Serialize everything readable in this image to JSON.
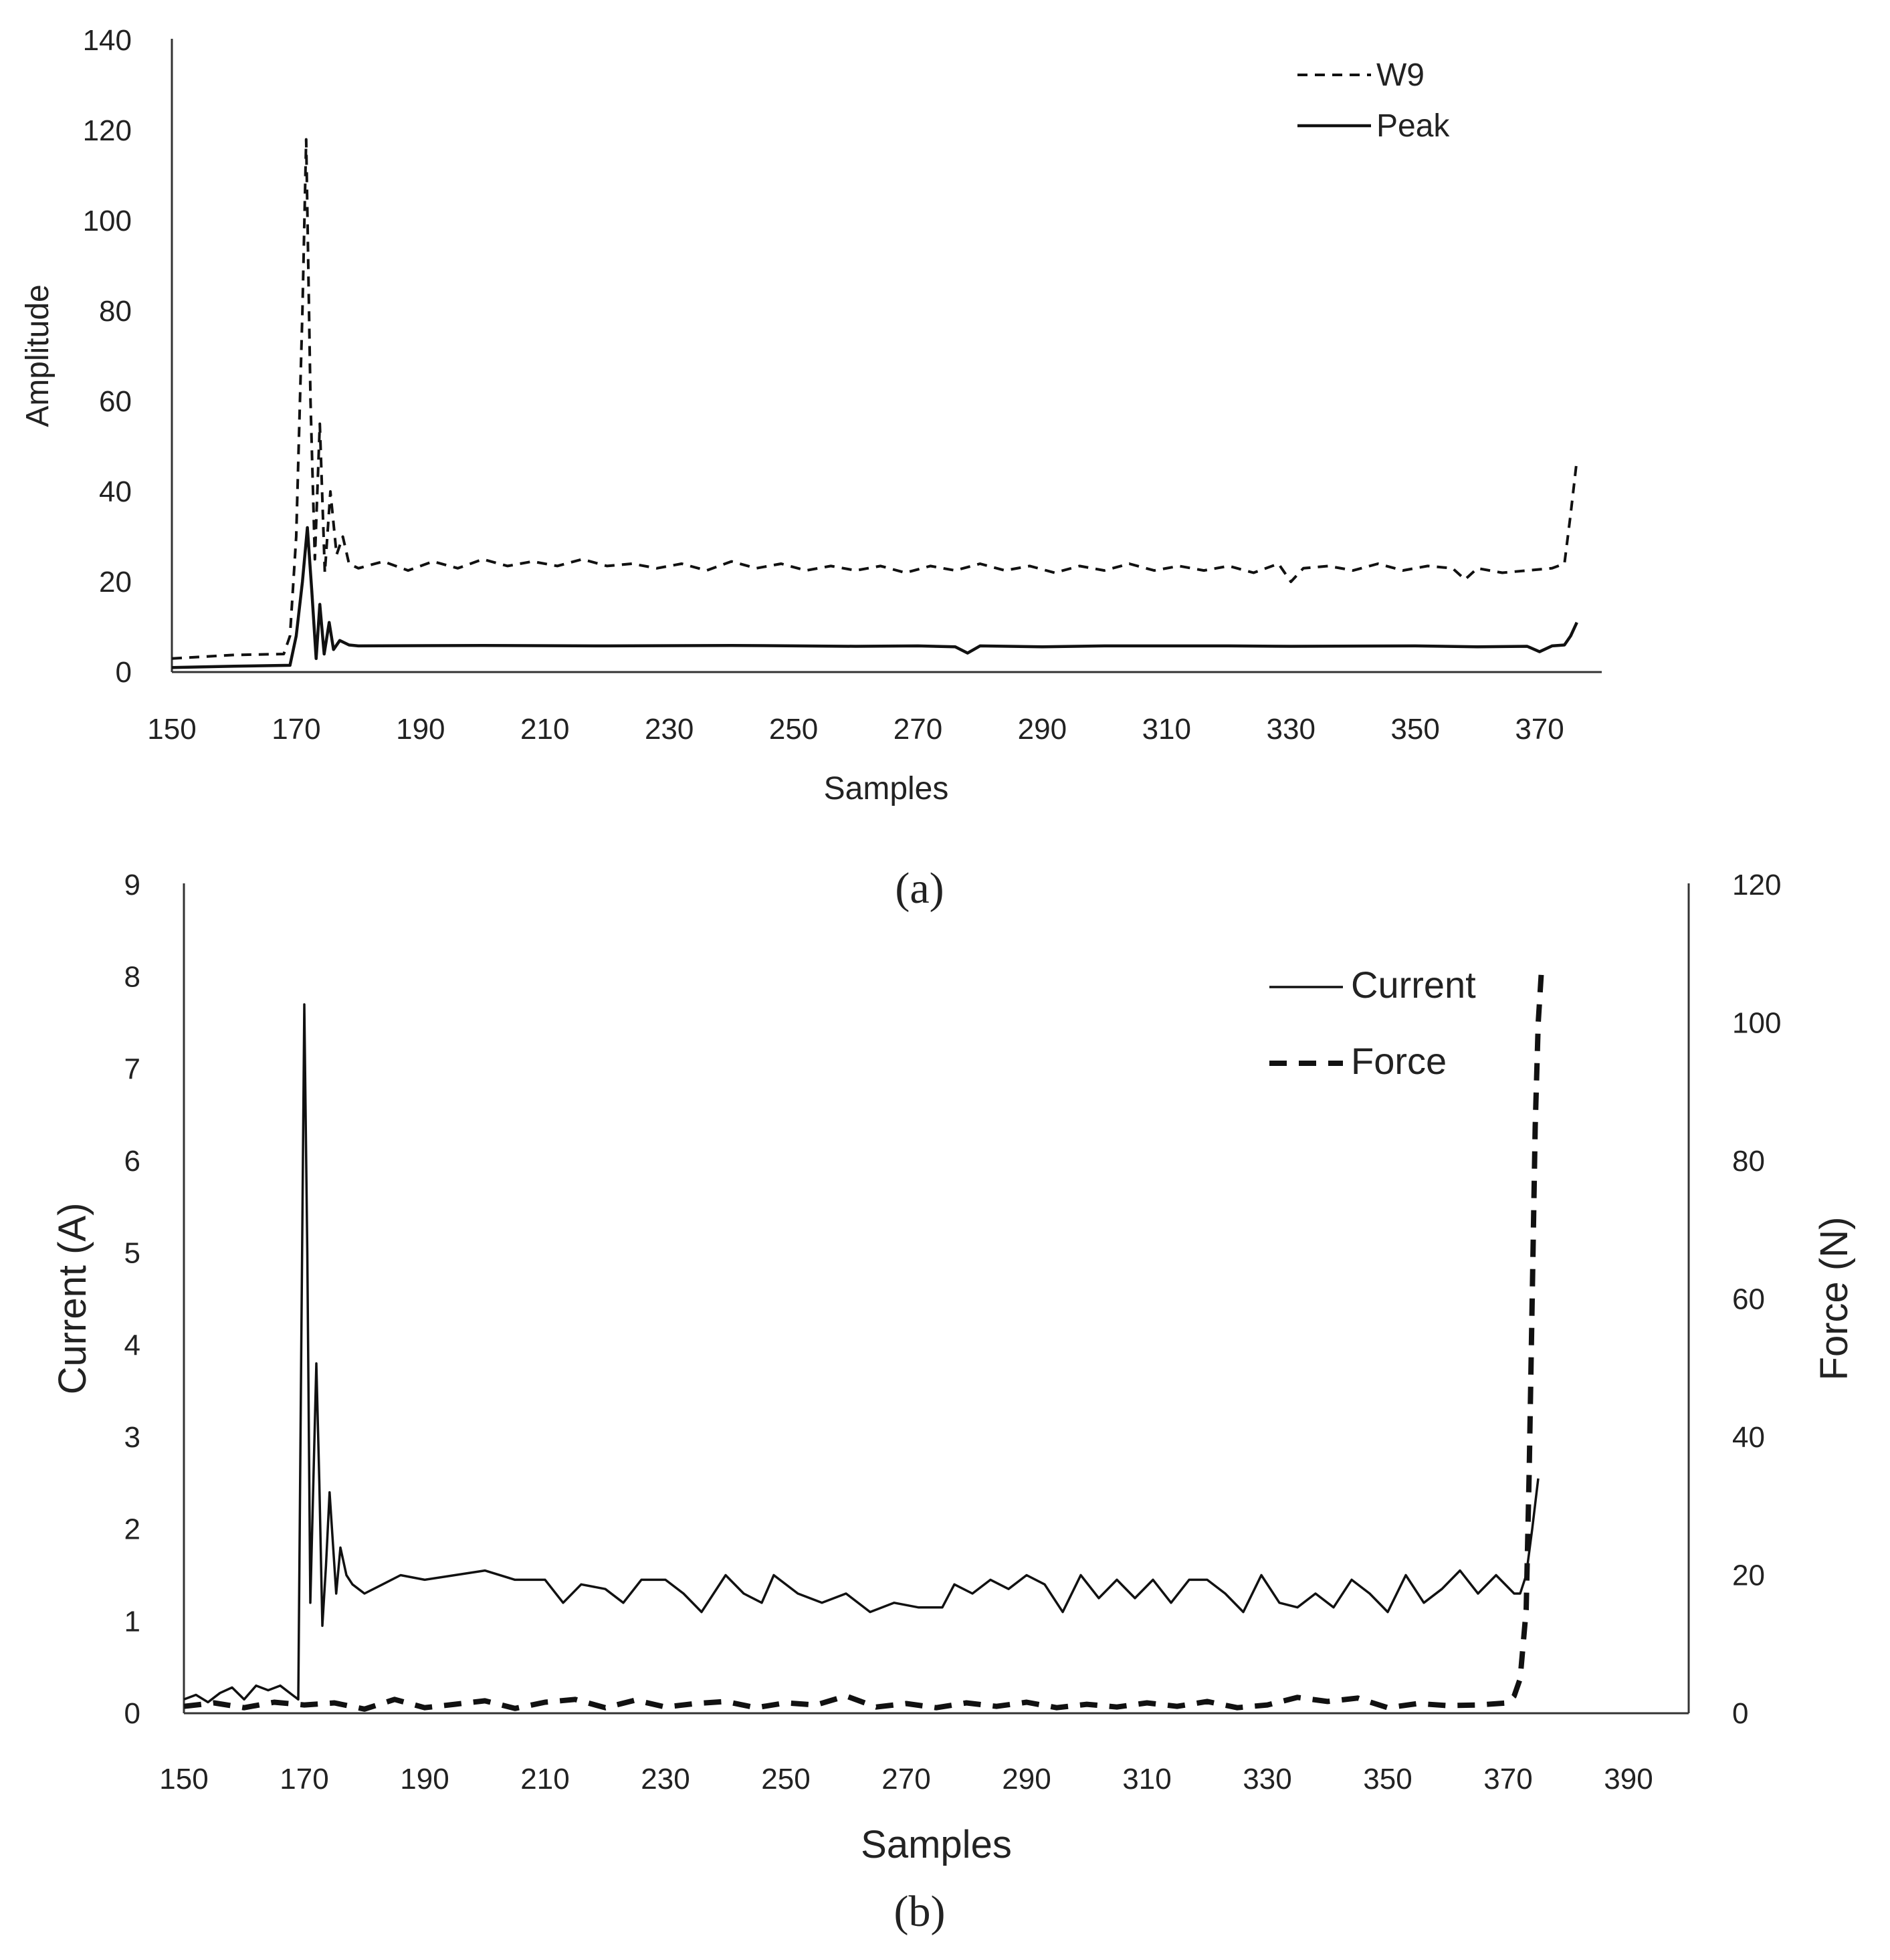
{
  "chart_data": [
    {
      "type": "line",
      "caption": "(a)",
      "xlabel": "Samples",
      "ylabel": "Amplitude",
      "xlim": [
        150,
        380
      ],
      "ylim": [
        0,
        140
      ],
      "x_ticks": [
        "150",
        "170",
        "190",
        "210",
        "230",
        "250",
        "270",
        "290",
        "310",
        "330",
        "350",
        "370"
      ],
      "y_ticks": [
        "0",
        "20",
        "40",
        "60",
        "80",
        "100",
        "120",
        "140"
      ],
      "legend_position": "top-right",
      "series": [
        {
          "name": "W9",
          "style": "dashed",
          "points": [
            [
              150,
              3
            ],
            [
              160,
              3.8
            ],
            [
              168,
              4
            ],
            [
              169,
              8
            ],
            [
              170,
              30
            ],
            [
              171,
              80
            ],
            [
              171.6,
              118
            ],
            [
              172.3,
              60
            ],
            [
              173,
              25
            ],
            [
              173.8,
              55
            ],
            [
              174.6,
              22
            ],
            [
              175.5,
              40
            ],
            [
              176.5,
              26
            ],
            [
              177.5,
              30
            ],
            [
              178.5,
              24
            ],
            [
              180,
              23
            ],
            [
              184,
              24.5
            ],
            [
              188,
              22.5
            ],
            [
              192,
              24.5
            ],
            [
              196,
              23
            ],
            [
              200,
              25
            ],
            [
              204,
              23.5
            ],
            [
              208,
              24.5
            ],
            [
              212,
              23.5
            ],
            [
              216,
              25
            ],
            [
              220,
              23.5
            ],
            [
              224,
              24
            ],
            [
              228,
              23
            ],
            [
              232,
              24
            ],
            [
              236,
              22.5
            ],
            [
              240,
              24.5
            ],
            [
              244,
              23
            ],
            [
              248,
              24
            ],
            [
              252,
              22.5
            ],
            [
              256,
              23.5
            ],
            [
              260,
              22.5
            ],
            [
              264,
              23.5
            ],
            [
              268,
              22
            ],
            [
              272,
              23.5
            ],
            [
              276,
              22.5
            ],
            [
              280,
              24
            ],
            [
              284,
              22.5
            ],
            [
              288,
              23.5
            ],
            [
              292,
              22
            ],
            [
              296,
              23.5
            ],
            [
              300,
              22.5
            ],
            [
              304,
              24
            ],
            [
              308,
              22.5
            ],
            [
              312,
              23.5
            ],
            [
              316,
              22.5
            ],
            [
              320,
              23.5
            ],
            [
              324,
              22
            ],
            [
              328,
              24
            ],
            [
              330,
              20
            ],
            [
              332,
              23
            ],
            [
              336,
              23.5
            ],
            [
              340,
              22.5
            ],
            [
              344,
              24
            ],
            [
              348,
              22.5
            ],
            [
              352,
              23.5
            ],
            [
              356,
              23
            ],
            [
              358,
              20.5
            ],
            [
              360,
              23
            ],
            [
              364,
              22
            ],
            [
              368,
              22.5
            ],
            [
              372,
              23
            ],
            [
              374,
              24
            ],
            [
              375,
              35
            ],
            [
              376,
              47
            ]
          ]
        },
        {
          "name": "Peak",
          "style": "solid",
          "points": [
            [
              150,
              1
            ],
            [
              160,
              1.3
            ],
            [
              169,
              1.5
            ],
            [
              170,
              8
            ],
            [
              171,
              20
            ],
            [
              171.8,
              32
            ],
            [
              172.5,
              18
            ],
            [
              173.2,
              3
            ],
            [
              173.8,
              15
            ],
            [
              174.5,
              4
            ],
            [
              175.3,
              11
            ],
            [
              176,
              5
            ],
            [
              177,
              7
            ],
            [
              178.5,
              6
            ],
            [
              180,
              5.8
            ],
            [
              200,
              5.9
            ],
            [
              220,
              5.8
            ],
            [
              240,
              5.9
            ],
            [
              260,
              5.7
            ],
            [
              270,
              5.8
            ],
            [
              276,
              5.6
            ],
            [
              278,
              4.2
            ],
            [
              280,
              5.8
            ],
            [
              290,
              5.6
            ],
            [
              300,
              5.8
            ],
            [
              320,
              5.8
            ],
            [
              330,
              5.7
            ],
            [
              350,
              5.8
            ],
            [
              360,
              5.6
            ],
            [
              368,
              5.7
            ],
            [
              370,
              4.5
            ],
            [
              372,
              5.8
            ],
            [
              374,
              6
            ],
            [
              375,
              8
            ],
            [
              376,
              11
            ]
          ]
        }
      ]
    },
    {
      "type": "line",
      "caption": "(b)",
      "xlabel": "Samples",
      "ylabel": "Current (A)",
      "ylabel_right": "Force (N)",
      "xlim": [
        150,
        400
      ],
      "ylim": [
        0,
        9
      ],
      "ylim_right": [
        0,
        120
      ],
      "x_ticks": [
        "150",
        "170",
        "190",
        "210",
        "230",
        "250",
        "270",
        "290",
        "310",
        "330",
        "350",
        "370",
        "390"
      ],
      "y_ticks": [
        "0",
        "1",
        "2",
        "3",
        "4",
        "5",
        "6",
        "7",
        "8",
        "9"
      ],
      "y_ticks_right": [
        "0",
        "20",
        "40",
        "60",
        "80",
        "100",
        "120"
      ],
      "legend_position": "top-right",
      "series": [
        {
          "name": "Current",
          "style": "solid",
          "axis": "left",
          "points": [
            [
              150,
              0.15
            ],
            [
              152,
              0.2
            ],
            [
              154,
              0.12
            ],
            [
              156,
              0.22
            ],
            [
              158,
              0.28
            ],
            [
              160,
              0.15
            ],
            [
              162,
              0.3
            ],
            [
              164,
              0.25
            ],
            [
              166,
              0.3
            ],
            [
              168,
              0.2
            ],
            [
              169,
              0.15
            ],
            [
              169.5,
              4
            ],
            [
              170,
              7.7
            ],
            [
              170.5,
              5
            ],
            [
              171,
              1.2
            ],
            [
              171.5,
              2.5
            ],
            [
              172,
              3.8
            ],
            [
              172.5,
              2.5
            ],
            [
              173,
              0.95
            ],
            [
              173.6,
              1.6
            ],
            [
              174.2,
              2.4
            ],
            [
              174.8,
              1.8
            ],
            [
              175.3,
              1.3
            ],
            [
              176,
              1.8
            ],
            [
              177,
              1.5
            ],
            [
              178,
              1.4
            ],
            [
              180,
              1.3
            ],
            [
              183,
              1.4
            ],
            [
              186,
              1.5
            ],
            [
              190,
              1.45
            ],
            [
              195,
              1.5
            ],
            [
              200,
              1.55
            ],
            [
              205,
              1.45
            ],
            [
              210,
              1.45
            ],
            [
              213,
              1.2
            ],
            [
              216,
              1.4
            ],
            [
              220,
              1.35
            ],
            [
              223,
              1.2
            ],
            [
              226,
              1.45
            ],
            [
              230,
              1.45
            ],
            [
              233,
              1.3
            ],
            [
              236,
              1.1
            ],
            [
              240,
              1.5
            ],
            [
              243,
              1.3
            ],
            [
              246,
              1.2
            ],
            [
              248,
              1.5
            ],
            [
              252,
              1.3
            ],
            [
              256,
              1.2
            ],
            [
              260,
              1.3
            ],
            [
              264,
              1.1
            ],
            [
              268,
              1.2
            ],
            [
              272,
              1.15
            ],
            [
              276,
              1.15
            ],
            [
              278,
              1.4
            ],
            [
              281,
              1.3
            ],
            [
              284,
              1.45
            ],
            [
              287,
              1.35
            ],
            [
              290,
              1.5
            ],
            [
              293,
              1.4
            ],
            [
              296,
              1.1
            ],
            [
              299,
              1.5
            ],
            [
              302,
              1.25
            ],
            [
              305,
              1.45
            ],
            [
              308,
              1.25
            ],
            [
              311,
              1.45
            ],
            [
              314,
              1.2
            ],
            [
              317,
              1.45
            ],
            [
              320,
              1.45
            ],
            [
              323,
              1.3
            ],
            [
              326,
              1.1
            ],
            [
              329,
              1.5
            ],
            [
              332,
              1.2
            ],
            [
              335,
              1.15
            ],
            [
              338,
              1.3
            ],
            [
              341,
              1.15
            ],
            [
              344,
              1.45
            ],
            [
              347,
              1.3
            ],
            [
              350,
              1.1
            ],
            [
              353,
              1.5
            ],
            [
              356,
              1.2
            ],
            [
              359,
              1.35
            ],
            [
              362,
              1.55
            ],
            [
              365,
              1.3
            ],
            [
              368,
              1.5
            ],
            [
              371,
              1.3
            ],
            [
              372,
              1.3
            ],
            [
              373,
              1.5
            ],
            [
              374,
              2.0
            ],
            [
              375,
              2.55
            ]
          ]
        },
        {
          "name": "Force",
          "style": "dashed",
          "axis": "right",
          "points": [
            [
              150,
              1
            ],
            [
              155,
              1.5
            ],
            [
              160,
              0.8
            ],
            [
              165,
              1.6
            ],
            [
              170,
              1.2
            ],
            [
              175,
              1.5
            ],
            [
              180,
              0.6
            ],
            [
              185,
              2
            ],
            [
              190,
              0.8
            ],
            [
              195,
              1.3
            ],
            [
              200,
              1.8
            ],
            [
              205,
              0.7
            ],
            [
              210,
              1.6
            ],
            [
              215,
              2
            ],
            [
              220,
              0.8
            ],
            [
              225,
              1.9
            ],
            [
              230,
              0.9
            ],
            [
              235,
              1.4
            ],
            [
              240,
              1.7
            ],
            [
              245,
              0.8
            ],
            [
              250,
              1.5
            ],
            [
              255,
              1.2
            ],
            [
              260,
              2.5
            ],
            [
              265,
              0.9
            ],
            [
              270,
              1.4
            ],
            [
              275,
              0.8
            ],
            [
              280,
              1.5
            ],
            [
              285,
              1
            ],
            [
              290,
              1.6
            ],
            [
              295,
              0.8
            ],
            [
              300,
              1.3
            ],
            [
              305,
              0.9
            ],
            [
              310,
              1.5
            ],
            [
              315,
              1
            ],
            [
              320,
              1.7
            ],
            [
              325,
              0.8
            ],
            [
              330,
              1.2
            ],
            [
              335,
              2.3
            ],
            [
              340,
              1.7
            ],
            [
              345,
              2.2
            ],
            [
              350,
              0.8
            ],
            [
              355,
              1.4
            ],
            [
              360,
              1.1
            ],
            [
              365,
              1.2
            ],
            [
              370,
              1.5
            ],
            [
              371,
              2.5
            ],
            [
              372,
              5
            ],
            [
              373,
              15
            ],
            [
              373.5,
              35
            ],
            [
              374,
              60
            ],
            [
              374.5,
              85
            ],
            [
              375,
              100
            ],
            [
              375.5,
              107
            ]
          ]
        }
      ]
    }
  ]
}
